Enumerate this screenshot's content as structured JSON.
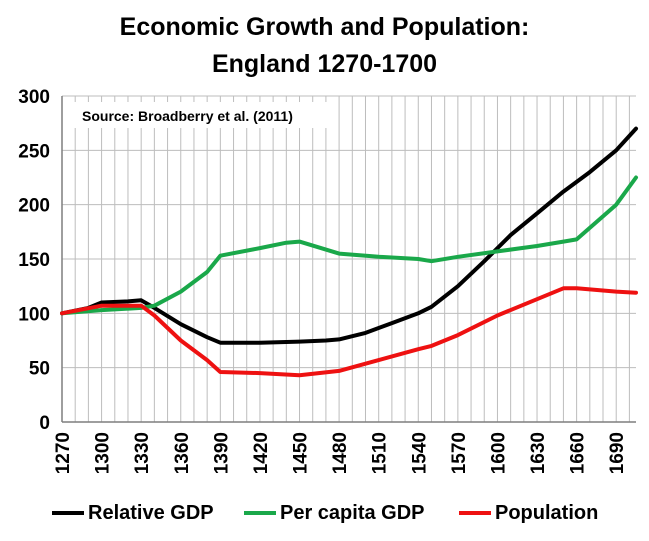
{
  "title_line1": "Economic Growth and Population:",
  "title_line2": "England 1270-1700",
  "chart_data": {
    "type": "line",
    "annotation": "Source: Broadberry et al. (2011)",
    "x_ticks": [
      "1270",
      "1300",
      "1330",
      "1360",
      "1390",
      "1420",
      "1450",
      "1480",
      "1510",
      "1540",
      "1570",
      "1600",
      "1630",
      "1660",
      "1690"
    ],
    "y_ticks": [
      "0",
      "50",
      "100",
      "150",
      "200",
      "250",
      "300"
    ],
    "ylim": [
      0,
      300
    ],
    "xlim": [
      1270,
      1705
    ],
    "grid": true,
    "legend_position": "bottom",
    "series": [
      {
        "name": "Relative GDP",
        "color": "#000000",
        "x": [
          1270,
          1290,
          1300,
          1320,
          1330,
          1340,
          1360,
          1380,
          1390,
          1420,
          1450,
          1470,
          1480,
          1500,
          1520,
          1540,
          1550,
          1570,
          1590,
          1610,
          1630,
          1650,
          1670,
          1690,
          1705
        ],
        "y": [
          100,
          105,
          110,
          111,
          112,
          105,
          90,
          78,
          73,
          73,
          74,
          75,
          76,
          82,
          91,
          100,
          106,
          125,
          148,
          172,
          192,
          212,
          230,
          250,
          270
        ]
      },
      {
        "name": "Per capita GDP",
        "color": "#1aa84a",
        "x": [
          1270,
          1300,
          1330,
          1340,
          1360,
          1380,
          1390,
          1420,
          1440,
          1450,
          1480,
          1510,
          1540,
          1550,
          1570,
          1600,
          1630,
          1650,
          1660,
          1690,
          1705
        ],
        "y": [
          100,
          103,
          105,
          107,
          120,
          138,
          153,
          160,
          165,
          166,
          155,
          152,
          150,
          148,
          152,
          157,
          162,
          166,
          168,
          200,
          225
        ]
      },
      {
        "name": "Population",
        "color": "#ee1111",
        "x": [
          1270,
          1300,
          1330,
          1340,
          1360,
          1380,
          1390,
          1420,
          1450,
          1480,
          1510,
          1540,
          1550,
          1570,
          1600,
          1630,
          1650,
          1660,
          1690,
          1705
        ],
        "y": [
          100,
          107,
          107,
          98,
          75,
          57,
          46,
          45,
          43,
          47,
          57,
          67,
          70,
          80,
          98,
          113,
          123,
          123,
          120,
          119
        ]
      }
    ]
  }
}
